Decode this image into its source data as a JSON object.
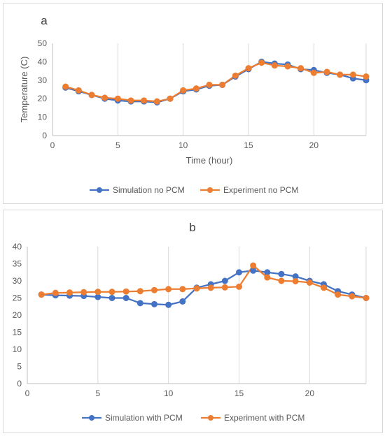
{
  "charts": [
    {
      "label": "a",
      "type": "line",
      "xlabel": "Time (hour)",
      "ylabel": "Temperature (C)",
      "xlim": [
        0,
        24
      ],
      "ylim": [
        0,
        50
      ],
      "xticks": [
        0,
        5,
        10,
        15,
        20
      ],
      "yticks": [
        0,
        10,
        20,
        30,
        40,
        50
      ],
      "grid": "vertical",
      "legend": "bottom",
      "x": [
        1,
        2,
        3,
        4,
        5,
        6,
        7,
        8,
        9,
        10,
        11,
        12,
        13,
        14,
        15,
        16,
        17,
        18,
        19,
        20,
        21,
        22,
        23,
        24
      ],
      "series": [
        {
          "name": "Simulation no PCM",
          "color": "#4472c4",
          "values": [
            26,
            24,
            22,
            20,
            19,
            18.5,
            18.5,
            18,
            20,
            24,
            25,
            27,
            27.5,
            32,
            36,
            40,
            39,
            38.5,
            36,
            35.5,
            34,
            33,
            31,
            30
          ]
        },
        {
          "name": "Experiment no PCM",
          "color": "#ed7d31",
          "values": [
            26.5,
            24.5,
            22,
            20.5,
            20,
            19,
            19,
            18.5,
            20,
            24.5,
            25.5,
            27.5,
            27.5,
            32.5,
            36.5,
            39.5,
            38,
            37.5,
            36.5,
            34,
            34.5,
            33,
            33,
            32
          ]
        }
      ]
    },
    {
      "label": "b",
      "type": "line",
      "xlabel": "",
      "ylabel": "",
      "xlim": [
        0,
        24
      ],
      "ylim": [
        0,
        40
      ],
      "xticks": [
        0,
        5,
        10,
        15,
        20
      ],
      "yticks": [
        0,
        5,
        10,
        15,
        20,
        25,
        30,
        35,
        40
      ],
      "grid": "vertical",
      "legend": "bottom",
      "x": [
        1,
        2,
        3,
        4,
        5,
        6,
        7,
        8,
        9,
        10,
        11,
        12,
        13,
        14,
        15,
        16,
        17,
        18,
        19,
        20,
        21,
        22,
        23,
        24
      ],
      "series": [
        {
          "name": "Simulation with PCM",
          "color": "#4472c4",
          "values": [
            26,
            25.8,
            25.7,
            25.6,
            25.3,
            25,
            25,
            23.5,
            23.2,
            23,
            24,
            28,
            29,
            30,
            32.5,
            33,
            32.5,
            32,
            31.3,
            30,
            29,
            27,
            26,
            25
          ]
        },
        {
          "name": "Experiment with PCM",
          "color": "#ed7d31",
          "values": [
            26,
            26.5,
            26.6,
            26.7,
            26.8,
            26.8,
            26.9,
            27,
            27.3,
            27.6,
            27.6,
            27.8,
            28,
            28.1,
            28.3,
            34.5,
            31,
            30,
            29.9,
            29.5,
            28,
            26,
            25.5,
            25
          ]
        }
      ]
    }
  ]
}
